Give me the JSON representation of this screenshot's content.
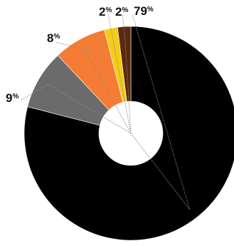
{
  "chart_data": {
    "type": "pie",
    "donut": true,
    "title": "",
    "slices": [
      {
        "label": "79",
        "value": 79,
        "color": "#000000"
      },
      {
        "label": "9",
        "value": 9,
        "color": "#6b6b6b"
      },
      {
        "label": "8",
        "value": 8,
        "color": "#f47c35"
      },
      {
        "label": "2",
        "value": 2,
        "color": "#f5cc17"
      },
      {
        "label": "2",
        "value": 2,
        "color": "#5a2a0c"
      }
    ],
    "percent_sign": "%",
    "legend": "none"
  }
}
